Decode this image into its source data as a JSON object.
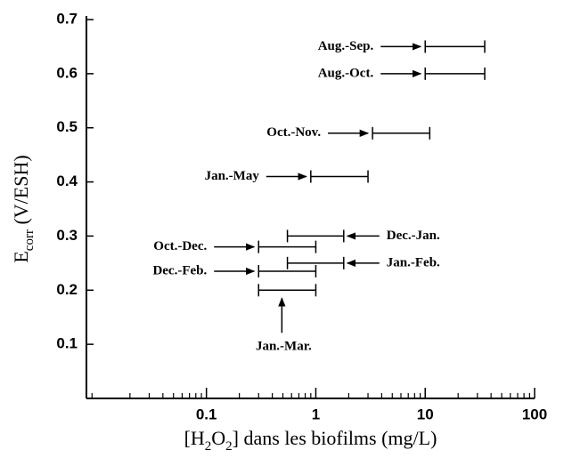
{
  "chart_data": {
    "type": "range",
    "ylabel_parts": [
      "E",
      "corr",
      " (V/ESH)"
    ],
    "xlabel_parts": [
      "[H",
      "2",
      "O",
      "2",
      "] dans les biofilms (mg/L)"
    ],
    "xscale": "log",
    "xlim": [
      0.008,
      100
    ],
    "xticks": [
      0.1,
      1,
      10,
      100
    ],
    "xminor": true,
    "ylim": [
      0,
      0.7
    ],
    "yticks": [
      0.1,
      0.2,
      0.3,
      0.4,
      0.5,
      0.6,
      0.7
    ],
    "color": "#000000",
    "series": [
      {
        "name": "Aug.-Sep.",
        "y": 0.65,
        "low": 10,
        "high": 35
      },
      {
        "name": "Aug.-Oct.",
        "y": 0.6,
        "low": 10,
        "high": 35
      },
      {
        "name": "Oct.-Nov.",
        "y": 0.49,
        "low": 3.3,
        "high": 11
      },
      {
        "name": "Jan.-May",
        "y": 0.41,
        "low": 0.9,
        "high": 3
      },
      {
        "name": "Dec.-Jan.",
        "y": 0.3,
        "low": 0.55,
        "high": 1.8
      },
      {
        "name": "Oct.-Dec.",
        "y": 0.28,
        "low": 0.3,
        "high": 1
      },
      {
        "name": "Jan.-Feb.",
        "y": 0.25,
        "low": 0.55,
        "high": 1.8
      },
      {
        "name": "Dec.-Feb.",
        "y": 0.235,
        "low": 0.3,
        "high": 1
      },
      {
        "name": "Jan.-Mar.",
        "y": 0.2,
        "low": 0.3,
        "high": 1
      }
    ]
  }
}
